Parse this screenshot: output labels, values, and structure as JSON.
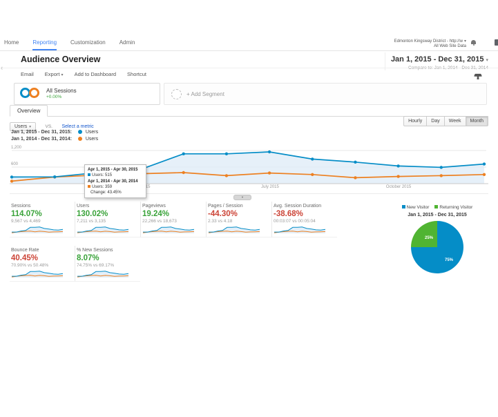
{
  "nav": {
    "items": [
      {
        "label": "Home"
      },
      {
        "label": "Reporting"
      },
      {
        "label": "Customization"
      },
      {
        "label": "Admin"
      }
    ],
    "active": "Reporting",
    "account_name": "Edmonton Kingsway District - http://w",
    "account_caret": "▾",
    "account_view": "All Web Site Data"
  },
  "header": {
    "title": "Audience Overview",
    "date_range": "Jan 1, 2015 - Dec 31, 2015",
    "date_caret": "▾",
    "compare_text": "Compare to: Jan 1, 2014 - Dec 31, 2014"
  },
  "toolbar": {
    "email": "Email",
    "export": "Export",
    "export_caret": "▾",
    "add_to_dashboard": "Add to Dashboard",
    "shortcut": "Shortcut"
  },
  "segments": {
    "all_sessions_label": "All Sessions",
    "all_sessions_delta": "+0.00%",
    "add_segment_label": "+ Add Segment"
  },
  "tabs": {
    "overview": "Overview"
  },
  "metric_bar": {
    "metric": "Users",
    "metric_caret": "▾",
    "vs_label": "VS.",
    "select_metric": "Select a metric"
  },
  "granularity": {
    "options": [
      {
        "label": "Hourly"
      },
      {
        "label": "Day"
      },
      {
        "label": "Week"
      },
      {
        "label": "Month"
      }
    ],
    "selected": "Month"
  },
  "legend": {
    "row1_range": "Jan 1, 2015 - Dec 31, 2015:",
    "row1_series": "Users",
    "row2_range": "Jan 1, 2014 - Dec 31, 2014:",
    "row2_series": "Users"
  },
  "colors": {
    "blue": "#058dc7",
    "orange": "#ed8021",
    "area_fill": "#ddebf7",
    "green_text": "#3aa33a",
    "red_text": "#cc4437",
    "pie_green": "#50b432",
    "link_blue": "#1155cc",
    "nav_active_blue": "#4285f4"
  },
  "chart_data": [
    {
      "type": "line",
      "title": "Users by month — Jan 1, 2015 - Dec 31, 2015 vs Jan 1, 2014 - Dec 31, 2014",
      "x": [
        "Jan 2015",
        "Feb 2015",
        "Mar 2015",
        "Apr 2015",
        "May 2015",
        "Jun 2015",
        "Jul 2015",
        "Aug 2015",
        "Sep 2015",
        "Oct 2015",
        "Nov 2015",
        "Dec 2015"
      ],
      "series": [
        {
          "name": "Users (Jan 1, 2015 - Dec 31, 2015)",
          "color": "#058dc7",
          "values": [
            240,
            245,
            400,
            515,
            1080,
            1080,
            1150,
            890,
            780,
            640,
            590,
            710
          ]
        },
        {
          "name": "Users (Jan 1, 2014 - Dec 31, 2014)",
          "color": "#ed8021",
          "values": [
            90,
            240,
            310,
            359,
            400,
            290,
            385,
            330,
            215,
            260,
            290,
            330
          ]
        }
      ],
      "ylim": [
        0,
        1300
      ],
      "yticks": [
        {
          "value": 600,
          "label": "600"
        },
        {
          "value": 1200,
          "label": "1,200"
        }
      ],
      "xticks": [
        {
          "index": 3,
          "label": "April 2015"
        },
        {
          "index": 6,
          "label": "July 2015"
        },
        {
          "index": 9,
          "label": "October 2015"
        }
      ],
      "grid": true,
      "legend_position": "above-left"
    },
    {
      "type": "pie",
      "title": "Jan 1, 2015 - Dec 31, 2015",
      "labels": [
        "New Visitor",
        "Returning Visitor"
      ],
      "values": [
        75,
        25
      ],
      "colors": [
        "#058dc7",
        "#50b432"
      ],
      "slice_labels": [
        "75%",
        "25%"
      ],
      "legend_position": "top"
    }
  ],
  "tooltip": {
    "date1": "Apr 1, 2015 - Apr 30, 2015",
    "users1_label": "Users:",
    "users1": "515",
    "date2": "Apr 1, 2014 - Apr 30, 2014",
    "users2_label": "Users:",
    "users2": "359",
    "change_label": "Change:",
    "change": "43.45%"
  },
  "cards": [
    {
      "label": "Sessions",
      "pct": "114.07%",
      "compare": "9,567 vs 4,469",
      "color": "#3aa33a"
    },
    {
      "label": "Users",
      "pct": "130.02%",
      "compare": "7,211 vs 3,135",
      "color": "#3aa33a"
    },
    {
      "label": "Pageviews",
      "pct": "19.24%",
      "compare": "22,266 vs 18,673",
      "color": "#3aa33a"
    },
    {
      "label": "Pages / Session",
      "pct": "-44.30%",
      "compare": "2.33 vs 4.18",
      "color": "#cc4437"
    },
    {
      "label": "Avg. Session Duration",
      "pct": "-38.68%",
      "compare": "00:03:07 vs 00:05:04",
      "color": "#cc4437"
    },
    {
      "label": "Bounce Rate",
      "pct": "40.45%",
      "compare": "70.90% vs 50.48%",
      "color": "#cc4437"
    },
    {
      "label": "% New Sessions",
      "pct": "8.07%",
      "compare": "74.75% vs 69.17%",
      "color": "#3aa33a"
    }
  ],
  "sparkline": {
    "blue": [
      0.18,
      0.18,
      0.32,
      0.4,
      0.83,
      0.83,
      0.88,
      0.68,
      0.6,
      0.49,
      0.45,
      0.55
    ],
    "orange": [
      0.07,
      0.18,
      0.24,
      0.28,
      0.31,
      0.22,
      0.3,
      0.25,
      0.17,
      0.2,
      0.22,
      0.25
    ]
  },
  "pie_section": {
    "legend": [
      {
        "label": "New Visitor",
        "color": "#058dc7"
      },
      {
        "label": "Returning Visitor",
        "color": "#50b432"
      }
    ],
    "title": "Jan 1, 2015 - Dec 31, 2015",
    "slice_labels": [
      "75%",
      "25%"
    ]
  }
}
